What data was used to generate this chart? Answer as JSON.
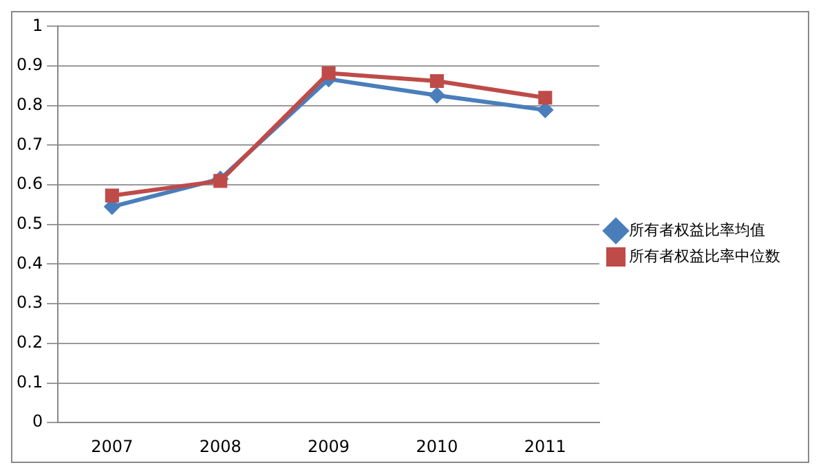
{
  "chart_data": {
    "type": "line",
    "categories": [
      "2007",
      "2008",
      "2009",
      "2010",
      "2011"
    ],
    "series": [
      {
        "name": "所有者权益比率均值",
        "color": "#4a7ebb",
        "marker": "diamond",
        "values": [
          0.545,
          0.615,
          0.867,
          0.826,
          0.789
        ]
      },
      {
        "name": "所有者权益比率中位数",
        "color": "#be4b48",
        "marker": "square",
        "values": [
          0.573,
          0.61,
          0.882,
          0.862,
          0.82
        ]
      }
    ],
    "ylim": [
      0,
      1
    ],
    "yticks": [
      0,
      0.1,
      0.2,
      0.3,
      0.4,
      0.5,
      0.6,
      0.7,
      0.8,
      0.9,
      1
    ],
    "grid": "y",
    "legend": "right",
    "line_style": "solid"
  }
}
